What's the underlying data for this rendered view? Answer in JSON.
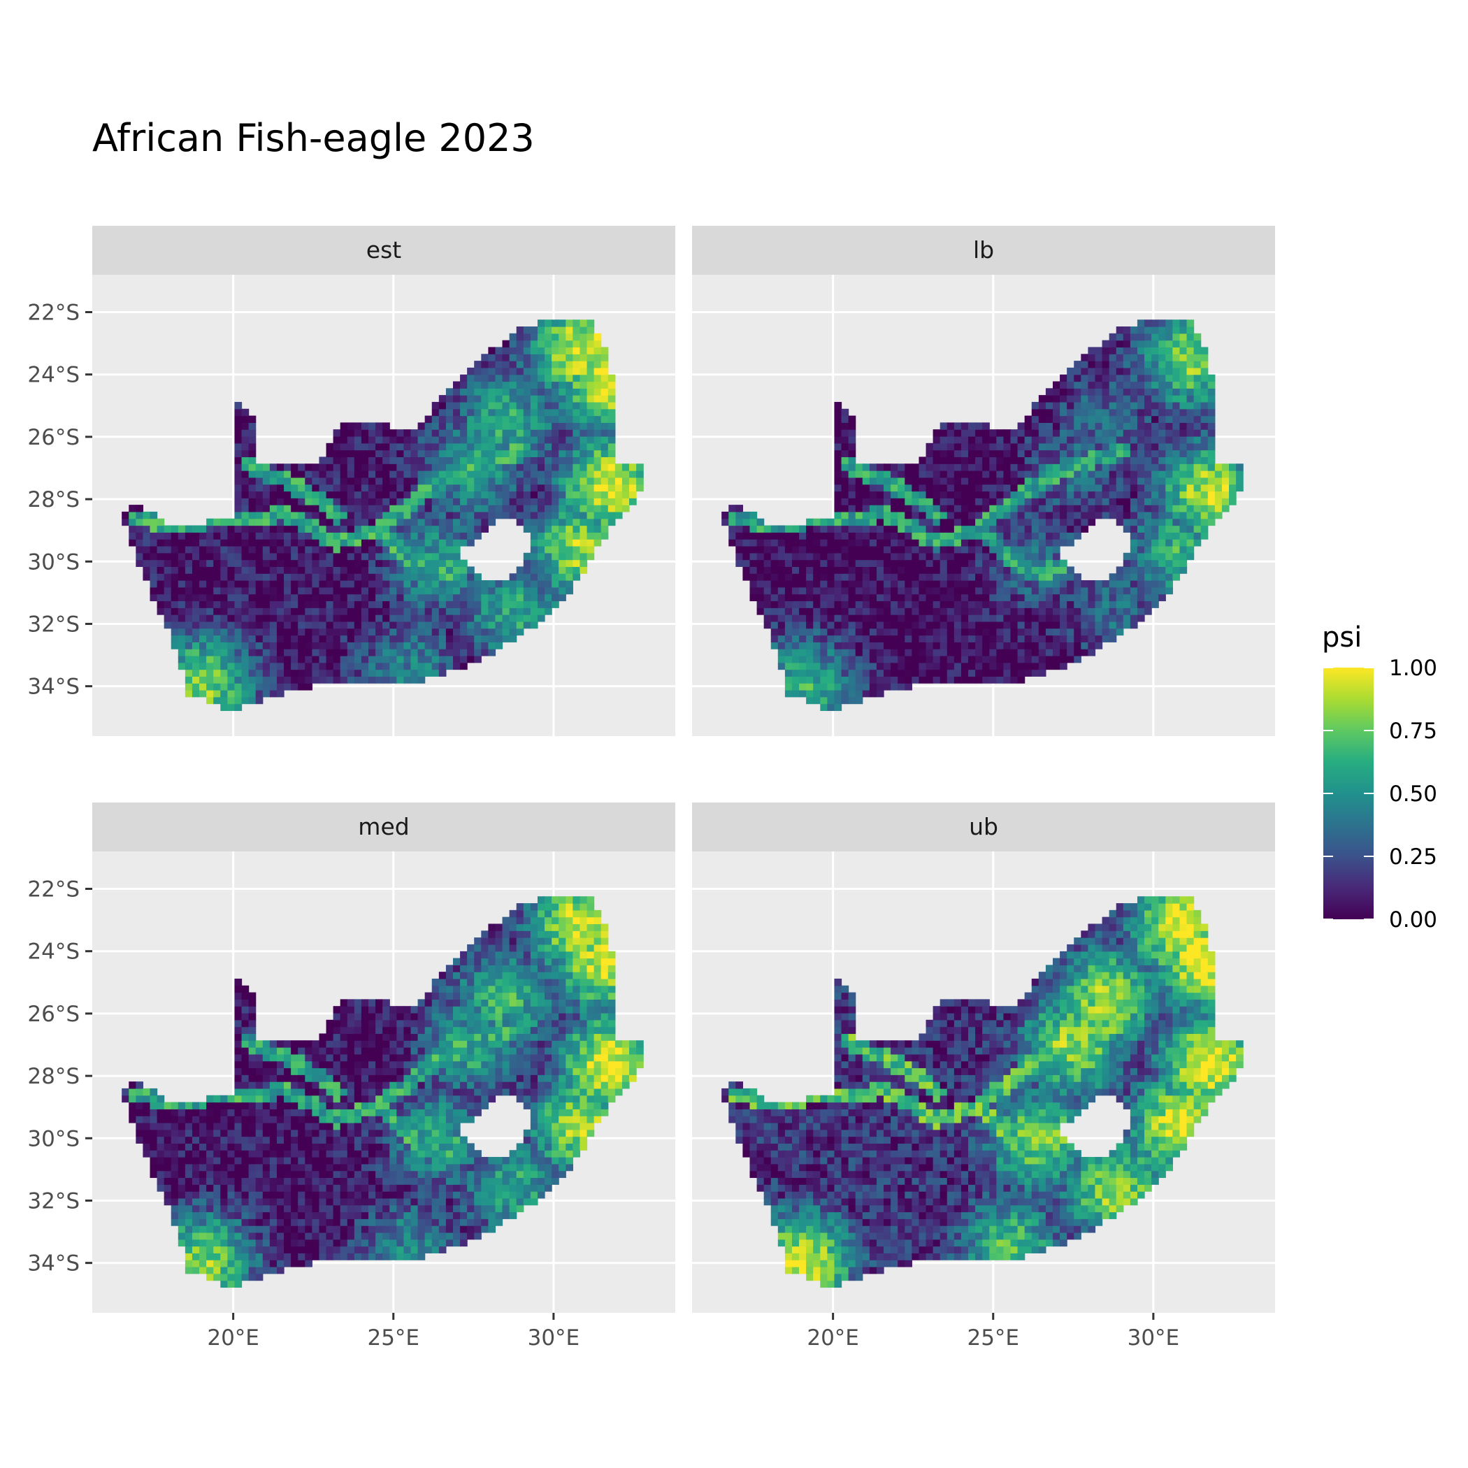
{
  "title": "African Fish-eagle 2023",
  "chart_data": {
    "type": "heatmap",
    "title": "African Fish-eagle 2023",
    "facets": [
      "est",
      "lb",
      "med",
      "ub"
    ],
    "x_ticks": [
      {
        "value": 20,
        "label": "20°E"
      },
      {
        "value": 25,
        "label": "25°E"
      },
      {
        "value": 30,
        "label": "30°E"
      }
    ],
    "y_ticks": [
      {
        "value": -22,
        "label": "22°S"
      },
      {
        "value": -24,
        "label": "24°S"
      },
      {
        "value": -26,
        "label": "26°S"
      },
      {
        "value": -28,
        "label": "28°S"
      },
      {
        "value": -30,
        "label": "30°S"
      },
      {
        "value": -32,
        "label": "32°S"
      },
      {
        "value": -34,
        "label": "34°S"
      }
    ],
    "xlim": [
      15.6,
      33.8
    ],
    "ylim": [
      -35.6,
      -20.8
    ],
    "legend": {
      "title": "psi",
      "position": "right",
      "breaks": [
        {
          "value": 0.0,
          "label": "0.00"
        },
        {
          "value": 0.25,
          "label": "0.25"
        },
        {
          "value": 0.5,
          "label": "0.50"
        },
        {
          "value": 0.75,
          "label": "0.75"
        },
        {
          "value": 1.0,
          "label": "1.00"
        }
      ],
      "colormap": "viridis",
      "colors": [
        "#440154",
        "#3b528b",
        "#21918c",
        "#5ec962",
        "#fde725"
      ]
    },
    "background": "#ebebeb",
    "grid": true,
    "strip_background": "#d9d9d9",
    "country_outline": [
      [
        20.0,
        -24.8
      ],
      [
        20.8,
        -25.6
      ],
      [
        20.8,
        -26.8
      ],
      [
        22.7,
        -26.8
      ],
      [
        23.4,
        -25.5
      ],
      [
        24.5,
        -25.6
      ],
      [
        25.6,
        -25.8
      ],
      [
        26.6,
        -24.6
      ],
      [
        27.4,
        -23.8
      ],
      [
        28.8,
        -22.6
      ],
      [
        29.9,
        -22.2
      ],
      [
        31.2,
        -22.3
      ],
      [
        31.7,
        -23.4
      ],
      [
        32.0,
        -25.0
      ],
      [
        32.0,
        -26.0
      ],
      [
        31.9,
        -26.9
      ],
      [
        32.9,
        -26.9
      ],
      [
        32.6,
        -28.0
      ],
      [
        31.6,
        -29.2
      ],
      [
        30.9,
        -30.4
      ],
      [
        30.0,
        -31.6
      ],
      [
        28.6,
        -32.6
      ],
      [
        27.5,
        -33.3
      ],
      [
        26.0,
        -33.8
      ],
      [
        24.9,
        -34.0
      ],
      [
        23.5,
        -33.9
      ],
      [
        22.4,
        -34.0
      ],
      [
        21.0,
        -34.4
      ],
      [
        19.9,
        -34.8
      ],
      [
        19.4,
        -34.6
      ],
      [
        18.5,
        -34.2
      ],
      [
        18.4,
        -33.4
      ],
      [
        18.1,
        -32.6
      ],
      [
        17.7,
        -31.6
      ],
      [
        17.1,
        -30.2
      ],
      [
        16.5,
        -28.6
      ],
      [
        17.0,
        -28.1
      ],
      [
        18.0,
        -28.9
      ],
      [
        19.3,
        -28.7
      ],
      [
        20.0,
        -28.5
      ]
    ],
    "lesotho_outline": [
      [
        27.6,
        -29.4
      ],
      [
        28.3,
        -28.6
      ],
      [
        29.0,
        -28.8
      ],
      [
        29.4,
        -29.3
      ],
      [
        29.0,
        -29.9
      ],
      [
        28.9,
        -30.2
      ],
      [
        28.4,
        -30.6
      ],
      [
        27.8,
        -30.6
      ],
      [
        27.2,
        -30.0
      ],
      [
        27.0,
        -29.6
      ]
    ],
    "rivers": [
      [
        [
          17.0,
          -28.6
        ],
        [
          18.3,
          -28.9
        ],
        [
          19.5,
          -28.6
        ],
        [
          20.6,
          -28.7
        ],
        [
          21.6,
          -28.4
        ],
        [
          22.4,
          -28.9
        ],
        [
          23.3,
          -29.4
        ],
        [
          24.0,
          -29.1
        ],
        [
          24.5,
          -29.0
        ],
        [
          25.2,
          -29.6
        ],
        [
          25.8,
          -30.2
        ],
        [
          26.5,
          -30.4
        ],
        [
          27.4,
          -30.0
        ]
      ],
      [
        [
          24.4,
          -29.0
        ],
        [
          25.2,
          -28.4
        ],
        [
          26.1,
          -27.7
        ],
        [
          27.0,
          -27.1
        ],
        [
          28.0,
          -26.8
        ],
        [
          29.1,
          -26.4
        ]
      ],
      [
        [
          20.5,
          -26.9
        ],
        [
          21.8,
          -27.5
        ],
        [
          22.5,
          -27.9
        ],
        [
          23.3,
          -28.5
        ]
      ]
    ],
    "patterns": [
      {
        "facet": "est",
        "hotspots": [
          {
            "lon": 30.9,
            "lat": -23.2,
            "psi": 0.95
          },
          {
            "lon": 31.6,
            "lat": -24.3,
            "psi": 0.92
          },
          {
            "lon": 31.8,
            "lat": -27.6,
            "psi": 0.97
          },
          {
            "lon": 30.9,
            "lat": -29.6,
            "psi": 0.85
          },
          {
            "lon": 28.8,
            "lat": -31.6,
            "psi": 0.6
          },
          {
            "lon": 26.4,
            "lat": -30.0,
            "psi": 0.55
          },
          {
            "lon": 28.5,
            "lat": -25.5,
            "psi": 0.6
          },
          {
            "lon": 19.0,
            "lat": -34.0,
            "psi": 0.8
          },
          {
            "lon": 25.5,
            "lat": -33.5,
            "psi": 0.45
          },
          {
            "lon": 27.5,
            "lat": -27.0,
            "psi": 0.55
          }
        ],
        "base": 0.06
      },
      {
        "facet": "lb",
        "hotspots": [
          {
            "lon": 31.2,
            "lat": -23.5,
            "psi": 0.8
          },
          {
            "lon": 31.8,
            "lat": -27.8,
            "psi": 0.9
          },
          {
            "lon": 30.9,
            "lat": -29.7,
            "psi": 0.65
          },
          {
            "lon": 28.8,
            "lat": -31.6,
            "psi": 0.35
          },
          {
            "lon": 26.4,
            "lat": -30.0,
            "psi": 0.35
          },
          {
            "lon": 28.5,
            "lat": -25.5,
            "psi": 0.35
          },
          {
            "lon": 19.0,
            "lat": -34.0,
            "psi": 0.65
          },
          {
            "lon": 27.5,
            "lat": -27.0,
            "psi": 0.35
          }
        ],
        "base": 0.03
      },
      {
        "facet": "med",
        "hotspots": [
          {
            "lon": 30.9,
            "lat": -23.2,
            "psi": 0.97
          },
          {
            "lon": 31.6,
            "lat": -24.3,
            "psi": 0.95
          },
          {
            "lon": 31.8,
            "lat": -27.6,
            "psi": 0.98
          },
          {
            "lon": 30.9,
            "lat": -29.6,
            "psi": 0.88
          },
          {
            "lon": 28.8,
            "lat": -31.6,
            "psi": 0.6
          },
          {
            "lon": 26.4,
            "lat": -30.0,
            "psi": 0.55
          },
          {
            "lon": 28.5,
            "lat": -25.5,
            "psi": 0.65
          },
          {
            "lon": 19.0,
            "lat": -34.0,
            "psi": 0.82
          },
          {
            "lon": 25.5,
            "lat": -33.5,
            "psi": 0.45
          },
          {
            "lon": 27.5,
            "lat": -27.0,
            "psi": 0.6
          }
        ],
        "base": 0.05
      },
      {
        "facet": "ub",
        "hotspots": [
          {
            "lon": 30.9,
            "lat": -23.2,
            "psi": 1.0
          },
          {
            "lon": 31.6,
            "lat": -24.3,
            "psi": 1.0
          },
          {
            "lon": 31.8,
            "lat": -27.6,
            "psi": 1.0
          },
          {
            "lon": 30.9,
            "lat": -29.6,
            "psi": 0.98
          },
          {
            "lon": 28.8,
            "lat": -31.6,
            "psi": 0.85
          },
          {
            "lon": 26.4,
            "lat": -30.0,
            "psi": 0.8
          },
          {
            "lon": 28.5,
            "lat": -25.5,
            "psi": 0.85
          },
          {
            "lon": 19.0,
            "lat": -34.0,
            "psi": 0.95
          },
          {
            "lon": 25.5,
            "lat": -33.5,
            "psi": 0.7
          },
          {
            "lon": 27.5,
            "lat": -27.0,
            "psi": 0.85
          }
        ],
        "base": 0.15
      }
    ]
  }
}
